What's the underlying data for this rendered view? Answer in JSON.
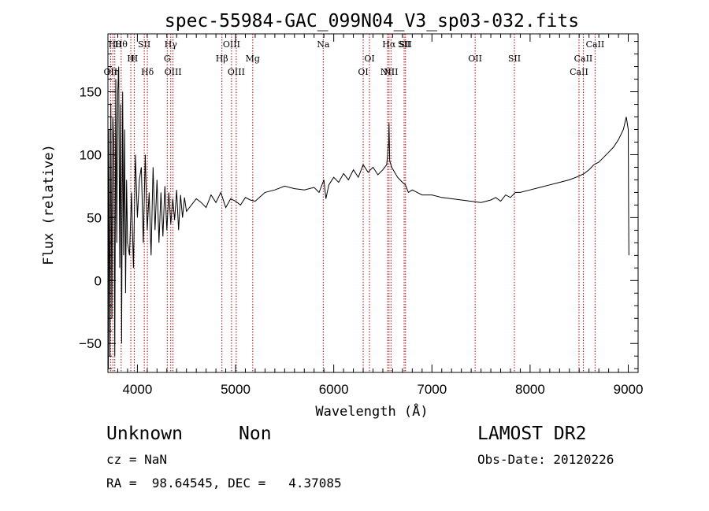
{
  "chart_data": {
    "type": "line",
    "title": "spec-55984-GAC_099N04_V3_sp03-032.fits",
    "xlabel": "Wavelength (Å)",
    "ylabel": "Flux (relative)",
    "xlim": [
      3700,
      9100
    ],
    "ylim": [
      -73,
      196
    ],
    "xticks": [
      4000,
      5000,
      6000,
      7000,
      8000,
      9000
    ],
    "yticks": [
      -50,
      0,
      50,
      100,
      150
    ],
    "grid": false,
    "series": [
      {
        "x": [
          3700,
          3705,
          3710,
          3720,
          3730,
          3740,
          3750,
          3760,
          3770,
          3780,
          3790,
          3800,
          3810,
          3820,
          3830,
          3840,
          3850,
          3860,
          3870,
          3880,
          3890,
          3900,
          3920,
          3940,
          3960,
          3980,
          4000,
          4020,
          4040,
          4060,
          4080,
          4100,
          4120,
          4140,
          4160,
          4180,
          4200,
          4220,
          4240,
          4260,
          4280,
          4300,
          4320,
          4340,
          4360,
          4380,
          4400,
          4420,
          4440,
          4460,
          4480,
          4500,
          4550,
          4600,
          4650,
          4700,
          4750,
          4800,
          4850,
          4900,
          4950,
          5000,
          5050,
          5100,
          5150,
          5200,
          5300,
          5400,
          5500,
          5600,
          5700,
          5800,
          5850,
          5900,
          5920,
          5950,
          6000,
          6050,
          6100,
          6150,
          6200,
          6250,
          6300,
          6350,
          6400,
          6450,
          6500,
          6540,
          6560,
          6563,
          6570,
          6590,
          6620,
          6650,
          6700,
          6730,
          6760,
          6800,
          6850,
          6900,
          7000,
          7100,
          7200,
          7300,
          7400,
          7500,
          7600,
          7650,
          7700,
          7750,
          7800,
          7850,
          7900,
          8000,
          8100,
          8200,
          8300,
          8400,
          8500,
          8550,
          8600,
          8650,
          8700,
          8750,
          8800,
          8850,
          8900,
          8950,
          8980,
          9000,
          9003,
          9006
        ],
        "y": [
          5,
          -70,
          120,
          -60,
          140,
          -30,
          130,
          110,
          -60,
          160,
          30,
          150,
          170,
          10,
          140,
          -50,
          150,
          20,
          120,
          -10,
          80,
          30,
          20,
          70,
          10,
          100,
          50,
          80,
          90,
          30,
          100,
          40,
          70,
          20,
          90,
          40,
          80,
          30,
          70,
          35,
          75,
          40,
          70,
          45,
          65,
          48,
          72,
          40,
          68,
          50,
          66,
          55,
          60,
          65,
          62,
          58,
          68,
          62,
          70,
          58,
          65,
          63,
          60,
          66,
          64,
          63,
          70,
          72,
          75,
          73,
          72,
          74,
          70,
          80,
          65,
          76,
          82,
          78,
          85,
          80,
          88,
          82,
          92,
          86,
          90,
          84,
          88,
          92,
          110,
          125,
          95,
          90,
          86,
          82,
          78,
          76,
          70,
          72,
          70,
          68,
          68,
          66,
          65,
          64,
          63,
          62,
          64,
          66,
          63,
          68,
          66,
          70,
          70,
          72,
          74,
          76,
          78,
          80,
          83,
          85,
          88,
          92,
          94,
          98,
          102,
          106,
          112,
          120,
          130,
          120,
          60,
          20
        ]
      }
    ],
    "line_markers": [
      {
        "x": 3727,
        "label": "OII",
        "row": 3
      },
      {
        "x": 3750,
        "label": "Hη",
        "row": 3
      },
      {
        "x": 3770,
        "label": "Hθ",
        "row": 1
      },
      {
        "x": 3835,
        "label": "Hθ",
        "row": 1
      },
      {
        "x": 3933,
        "label": "H",
        "row": 2
      },
      {
        "x": 3968,
        "label": "H",
        "row": 2
      },
      {
        "x": 4070,
        "label": "SII",
        "row": 1
      },
      {
        "x": 4102,
        "label": "Hδ",
        "row": 3
      },
      {
        "x": 4304,
        "label": "G",
        "row": 2
      },
      {
        "x": 4340,
        "label": "Hγ",
        "row": 1
      },
      {
        "x": 4363,
        "label": "OIII",
        "row": 3
      },
      {
        "x": 4861,
        "label": "Hβ",
        "row": 2
      },
      {
        "x": 4959,
        "label": "OIII",
        "row": 1
      },
      {
        "x": 5007,
        "label": "OIII",
        "row": 3
      },
      {
        "x": 5175,
        "label": "Mg",
        "row": 2
      },
      {
        "x": 5893,
        "label": "Na",
        "row": 1
      },
      {
        "x": 6300,
        "label": "OI",
        "row": 3
      },
      {
        "x": 6364,
        "label": "OI",
        "row": 2
      },
      {
        "x": 6548,
        "label": "NII",
        "row": 3
      },
      {
        "x": 6563,
        "label": "Hα",
        "row": 1
      },
      {
        "x": 6583,
        "label": "NII",
        "row": 3
      },
      {
        "x": 6717,
        "label": "SII",
        "row": 1
      },
      {
        "x": 6731,
        "label": "SII",
        "row": 1
      },
      {
        "x": 7440,
        "label": "OII",
        "row": 2
      },
      {
        "x": 7840,
        "label": "SII",
        "row": 2
      },
      {
        "x": 8498,
        "label": "CaII",
        "row": 3
      },
      {
        "x": 8542,
        "label": "CaII",
        "row": 2
      },
      {
        "x": 8662,
        "label": "CaII",
        "row": 1
      }
    ]
  },
  "info": {
    "object_class": "Unknown",
    "subclass": "Non",
    "survey": "LAMOST DR2",
    "redshift": "cz = NaN",
    "obs_date": "Obs-Date: 20120226",
    "coords": "RA =  98.64545, DEC =   4.37085"
  },
  "colors": {
    "spectrum": "#000000",
    "marker": "#aa0000",
    "axes": "#000000"
  }
}
